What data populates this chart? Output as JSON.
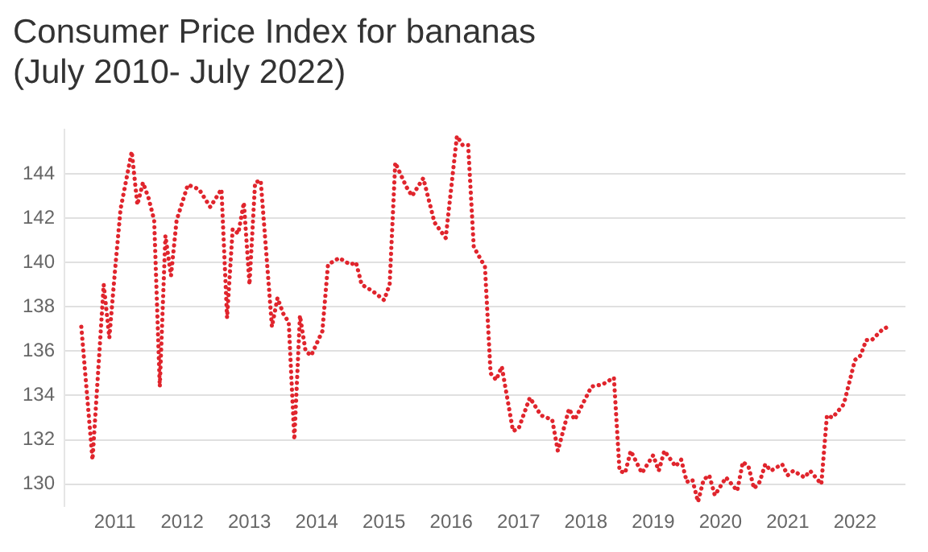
{
  "chart_data": {
    "type": "line",
    "title": "Consumer Price Index for bananas\n(July 2010- July 2022)",
    "x": [
      "2010-07",
      "2010-09",
      "2010-11",
      "2010-12",
      "2011-01",
      "2011-02",
      "2011-04",
      "2011-05",
      "2011-06",
      "2011-07",
      "2011-08",
      "2011-09",
      "2011-10",
      "2011-11",
      "2011-12",
      "2012-02",
      "2012-04",
      "2012-06",
      "2012-08",
      "2012-09",
      "2012-10",
      "2012-11",
      "2012-12",
      "2013-01",
      "2013-02",
      "2013-03",
      "2013-05",
      "2013-06",
      "2013-07",
      "2013-08",
      "2013-09",
      "2013-10",
      "2013-11",
      "2013-12",
      "2014-02",
      "2014-03",
      "2014-05",
      "2014-07",
      "2014-08",
      "2014-09",
      "2014-11",
      "2015-01",
      "2015-02",
      "2015-03",
      "2015-05",
      "2015-06",
      "2015-08",
      "2015-10",
      "2015-12",
      "2016-02",
      "2016-03",
      "2016-04",
      "2016-05",
      "2016-07",
      "2016-08",
      "2016-09",
      "2016-10",
      "2016-12",
      "2017-01",
      "2017-03",
      "2017-04",
      "2017-05",
      "2017-07",
      "2017-08",
      "2017-10",
      "2017-11",
      "2018-02",
      "2018-04",
      "2018-06",
      "2018-07",
      "2018-08",
      "2018-09",
      "2018-11",
      "2019-01",
      "2019-02",
      "2019-03",
      "2019-05",
      "2019-06",
      "2019-07",
      "2019-08",
      "2019-09",
      "2019-10",
      "2019-11",
      "2019-12",
      "2020-02",
      "2020-03",
      "2020-04",
      "2020-05",
      "2020-06",
      "2020-07",
      "2020-08",
      "2020-09",
      "2020-10",
      "2020-12",
      "2021-01",
      "2021-02",
      "2021-04",
      "2021-05",
      "2021-06",
      "2021-07",
      "2021-08",
      "2021-09",
      "2021-11",
      "2022-01",
      "2022-02",
      "2022-03",
      "2022-04",
      "2022-06",
      "2022-07"
    ],
    "series": [
      {
        "color": "#e0252d",
        "values": [
          137.1,
          131.1,
          139.0,
          136.6,
          139.6,
          142.4,
          145.0,
          142.6,
          143.6,
          142.9,
          141.9,
          134.4,
          141.2,
          139.4,
          141.9,
          143.5,
          143.3,
          142.5,
          143.3,
          137.5,
          141.5,
          141.3,
          142.7,
          139.0,
          143.6,
          143.7,
          137.1,
          138.4,
          137.7,
          137.3,
          132.0,
          137.6,
          136.0,
          135.8,
          136.9,
          139.9,
          140.2,
          139.9,
          140.0,
          139.0,
          138.7,
          138.3,
          139.0,
          144.5,
          143.4,
          143.0,
          143.8,
          141.8,
          141.1,
          145.7,
          145.3,
          145.3,
          140.7,
          139.8,
          135.0,
          134.7,
          135.3,
          132.4,
          132.5,
          133.9,
          133.5,
          133.1,
          132.9,
          131.5,
          133.4,
          132.9,
          134.4,
          134.5,
          134.8,
          130.6,
          130.5,
          131.5,
          130.5,
          131.3,
          130.6,
          131.5,
          130.8,
          131.1,
          130.1,
          130.2,
          129.2,
          130.2,
          130.4,
          129.5,
          130.3,
          130.0,
          129.7,
          131.0,
          130.8,
          129.8,
          130.1,
          130.9,
          130.6,
          130.9,
          130.4,
          130.6,
          130.3,
          130.6,
          130.3,
          130.0,
          133.1,
          133.0,
          133.6,
          135.6,
          135.8,
          136.5,
          136.5,
          137.0,
          137.1
        ]
      }
    ],
    "xlim": [
      "2010-04",
      "2022-10"
    ],
    "xticks": [
      "2011",
      "2012",
      "2013",
      "2014",
      "2015",
      "2016",
      "2017",
      "2018",
      "2019",
      "2020",
      "2021",
      "2022"
    ],
    "ylim": [
      129,
      146
    ],
    "yticks": [
      130,
      132,
      134,
      136,
      138,
      140,
      142,
      144
    ],
    "grid": "y",
    "legend": false,
    "marker": "none",
    "line_style": "dotted"
  }
}
